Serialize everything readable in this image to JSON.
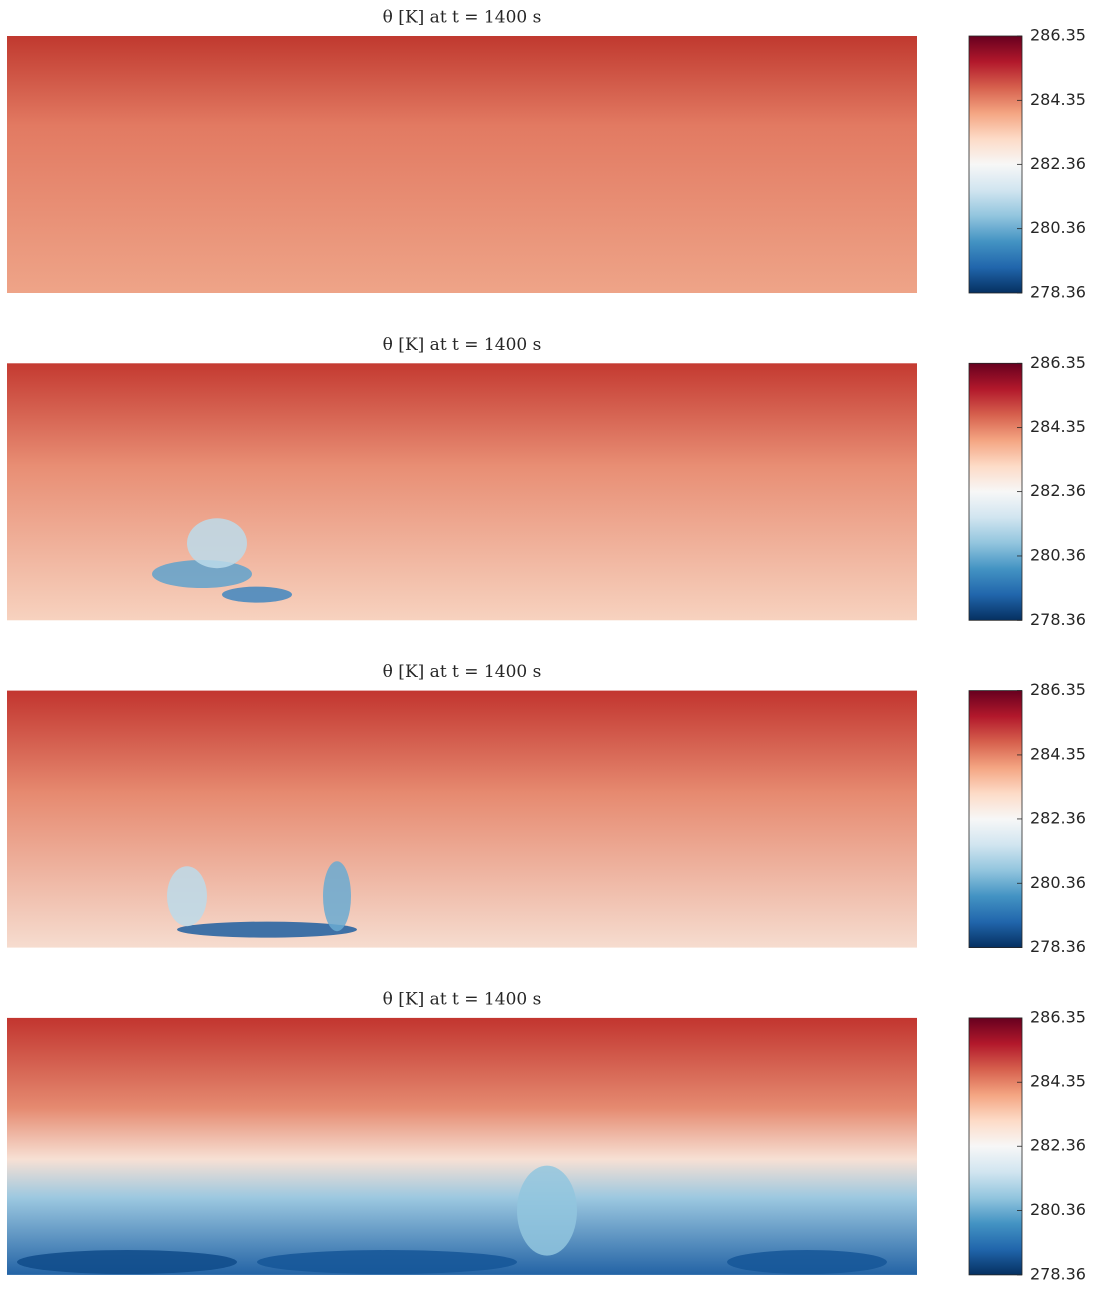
{
  "chart_data": [
    {
      "type": "heatmap",
      "title": "θ [K] at t = 1400 s",
      "clim": [
        278.36,
        286.35
      ],
      "cticks": [
        278.36,
        280.36,
        282.36,
        284.35,
        286.35
      ],
      "colormap": [
        "#053061",
        "#2166ac",
        "#4393c3",
        "#92c5de",
        "#d1e5f0",
        "#f7f7f7",
        "#fddbc7",
        "#f4a582",
        "#d6604d",
        "#b2182b",
        "#67001f"
      ]
    },
    {
      "type": "heatmap",
      "title": "θ [K] at t = 1400 s",
      "clim": [
        278.36,
        286.35
      ],
      "cticks": [
        278.36,
        280.36,
        282.36,
        284.35,
        286.35
      ],
      "colormap": [
        "#053061",
        "#2166ac",
        "#4393c3",
        "#92c5de",
        "#d1e5f0",
        "#f7f7f7",
        "#fddbc7",
        "#f4a582",
        "#d6604d",
        "#b2182b",
        "#67001f"
      ]
    },
    {
      "type": "heatmap",
      "title": "θ [K] at t = 1400 s",
      "clim": [
        278.36,
        286.35
      ],
      "cticks": [
        278.36,
        280.36,
        282.36,
        284.35,
        286.35
      ],
      "colormap": [
        "#053061",
        "#2166ac",
        "#4393c3",
        "#92c5de",
        "#d1e5f0",
        "#f7f7f7",
        "#fddbc7",
        "#f4a582",
        "#d6604d",
        "#b2182b",
        "#67001f"
      ]
    },
    {
      "type": "heatmap",
      "title": "θ [K] at t = 1400 s",
      "clim": [
        278.36,
        286.35
      ],
      "cticks": [
        278.36,
        280.36,
        282.36,
        284.35,
        286.35
      ],
      "colormap": [
        "#053061",
        "#2166ac",
        "#4393c3",
        "#92c5de",
        "#d1e5f0",
        "#f7f7f7",
        "#fddbc7",
        "#f4a582",
        "#d6604d",
        "#b2182b",
        "#67001f"
      ]
    }
  ]
}
